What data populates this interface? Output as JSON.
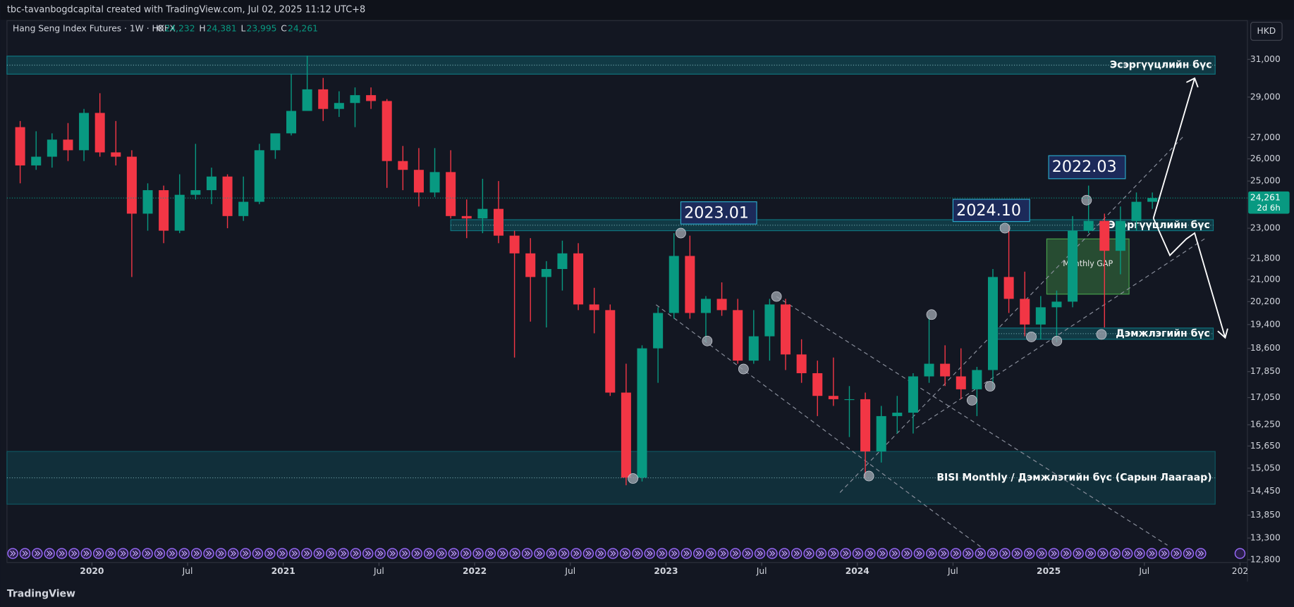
{
  "header": "tbc-tavanbogdcapital created with TradingView.com, Jul 02, 2025 11:12 UTC+8",
  "footer": "TradingView",
  "currency": "HKD",
  "chart_data": {
    "type": "candlestick",
    "legend": {
      "title": "Hang Seng Index Futures · 1W · HKEX",
      "ohlc": [
        {
          "key": "O",
          "value": "24,232"
        },
        {
          "key": "H",
          "value": "24,381"
        },
        {
          "key": "L",
          "value": "23,995"
        },
        {
          "key": "C",
          "value": "24,261"
        }
      ]
    },
    "last_price": {
      "value": 24261,
      "label": "24,261"
    },
    "countdown": "2d 6h",
    "log_scale": true,
    "up_color": "#089981",
    "down_color": "#f23645",
    "xlim": [
      2019.556,
      2026.03
    ],
    "xticks": [
      2020,
      {
        "value": 2020.5,
        "label": "Jul"
      },
      2021,
      {
        "value": 2021.5,
        "label": "Jul"
      },
      2022,
      {
        "value": 2022.5,
        "label": "Jul"
      },
      2023,
      {
        "value": 2023.5,
        "label": "Jul"
      },
      2024,
      {
        "value": 2024.5,
        "label": "Jul"
      },
      2025,
      {
        "value": 2025.5,
        "label": "Jul"
      },
      {
        "value": 2026,
        "label": "202"
      }
    ],
    "ylim": [
      12700,
      33200
    ],
    "yticks": [
      {
        "value": 31000,
        "label": "31,000"
      },
      {
        "value": 29000,
        "label": "29,000"
      },
      {
        "value": 27000,
        "label": "27,000"
      },
      {
        "value": 26000,
        "label": "26,000"
      },
      {
        "value": 25000,
        "label": "25,000"
      },
      {
        "value": 23000,
        "label": "23,000"
      },
      {
        "value": 21800,
        "label": "21,800"
      },
      {
        "value": 21000,
        "label": "21,000"
      },
      {
        "value": 20200,
        "label": "20,200"
      },
      {
        "value": 19400,
        "label": "19,400"
      },
      {
        "value": 18600,
        "label": "18,600"
      },
      {
        "value": 17850,
        "label": "17,850"
      },
      {
        "value": 17050,
        "label": "17,050"
      },
      {
        "value": 16250,
        "label": "16,250"
      },
      {
        "value": 15650,
        "label": "15,650"
      },
      {
        "value": 15050,
        "label": "15,050"
      },
      {
        "value": 14450,
        "label": "14,450"
      },
      {
        "value": 13850,
        "label": "13,850"
      },
      {
        "value": 13300,
        "label": "13,300"
      },
      {
        "value": 12800,
        "label": "12,800"
      }
    ],
    "x": [
      "2019-08",
      "2019-09",
      "2019-10",
      "2019-11",
      "2019-12",
      "2020-01",
      "2020-02",
      "2020-03",
      "2020-04",
      "2020-05",
      "2020-06",
      "2020-07",
      "2020-08",
      "2020-09",
      "2020-10",
      "2020-11",
      "2020-12",
      "2021-01",
      "2021-02",
      "2021-03",
      "2021-04",
      "2021-05",
      "2021-06",
      "2021-07",
      "2021-08",
      "2021-09",
      "2021-10",
      "2021-11",
      "2021-12",
      "2022-01",
      "2022-02",
      "2022-03",
      "2022-04",
      "2022-05",
      "2022-06",
      "2022-07",
      "2022-08",
      "2022-09",
      "2022-10",
      "2022-11",
      "2022-12",
      "2023-01",
      "2023-02",
      "2023-03",
      "2023-04",
      "2023-05",
      "2023-06",
      "2023-07",
      "2023-08",
      "2023-09",
      "2023-10",
      "2023-11",
      "2023-12",
      "2024-01",
      "2024-02",
      "2024-03",
      "2024-04",
      "2024-05",
      "2024-06",
      "2024-07",
      "2024-08",
      "2024-09",
      "2024-10",
      "2024-11",
      "2024-12",
      "2025-01",
      "2025-02",
      "2025-03",
      "2025-04",
      "2025-05",
      "2025-06",
      "2025-07"
    ],
    "open": [
      27500,
      25700,
      26100,
      26900,
      26400,
      28200,
      26300,
      26100,
      23600,
      24600,
      22900,
      24400,
      24600,
      25200,
      23500,
      24100,
      26400,
      27200,
      28300,
      29400,
      28400,
      28700,
      29100,
      28800,
      25900,
      25500,
      24500,
      25400,
      23500,
      23400,
      23800,
      22700,
      22000,
      21100,
      21400,
      22000,
      20100,
      19900,
      17200,
      14800,
      18600,
      19800,
      21900,
      19800,
      20300,
      19900,
      18200,
      19000,
      20100,
      18400,
      17800,
      17100,
      17000,
      17000,
      15500,
      16500,
      16600,
      17700,
      18100,
      17700,
      17300,
      17900,
      21100,
      20300,
      19400,
      20000,
      20200,
      22900,
      23300,
      22100,
      23300,
      24100
    ],
    "high": [
      27800,
      27300,
      27200,
      27700,
      28400,
      29200,
      27800,
      26400,
      24900,
      24800,
      25300,
      26700,
      25600,
      25300,
      25200,
      26700,
      27000,
      30200,
      31200,
      30000,
      29300,
      29500,
      29500,
      28900,
      26600,
      26500,
      26500,
      26400,
      24200,
      25100,
      25000,
      22900,
      22600,
      21700,
      22500,
      22400,
      20700,
      20100,
      18100,
      18700,
      20000,
      22800,
      22700,
      20400,
      20900,
      20300,
      19900,
      20300,
      20300,
      18900,
      18200,
      18300,
      17400,
      17200,
      16800,
      17100,
      17800,
      19700,
      18700,
      18600,
      18000,
      21400,
      23100,
      21300,
      20400,
      20600,
      23500,
      24800,
      23600,
      23900,
      24500,
      24500
    ],
    "low": [
      24900,
      25500,
      25600,
      25900,
      25900,
      26100,
      25700,
      21100,
      22900,
      22400,
      22800,
      24200,
      24000,
      23000,
      23300,
      24000,
      26000,
      27100,
      28500,
      27800,
      28000,
      27500,
      28400,
      24700,
      24600,
      23900,
      24300,
      23400,
      22600,
      22800,
      22400,
      18300,
      19500,
      19300,
      20600,
      19900,
      19100,
      17100,
      14600,
      14700,
      17500,
      19600,
      19600,
      18800,
      19700,
      18100,
      18100,
      18200,
      17900,
      17500,
      16500,
      16800,
      15900,
      14800,
      15200,
      16000,
      16000,
      17500,
      17400,
      17000,
      16500,
      17300,
      19800,
      19000,
      18900,
      18800,
      20000,
      22800,
      19300,
      21200,
      22900,
      23800
    ],
    "close": [
      25700,
      26100,
      26900,
      26400,
      28200,
      26300,
      26100,
      23600,
      24600,
      22900,
      24400,
      24600,
      25200,
      23500,
      24100,
      26400,
      27200,
      28300,
      29400,
      28400,
      28700,
      29100,
      28800,
      25900,
      25500,
      24500,
      25400,
      23500,
      23400,
      23800,
      22700,
      22000,
      21100,
      21400,
      22000,
      20100,
      19900,
      17200,
      14800,
      18600,
      19800,
      21900,
      19800,
      20300,
      19900,
      18200,
      19000,
      20100,
      18400,
      17800,
      17100,
      17000,
      17000,
      15500,
      16500,
      16600,
      17700,
      18100,
      17700,
      17300,
      17900,
      21100,
      20300,
      19400,
      20000,
      20200,
      22900,
      23300,
      22100,
      23300,
      24100,
      24261
    ],
    "zones": [
      {
        "name": "Эсэргүүцлийн бүс",
        "x": [
          2019.556,
          2025.87
        ],
        "range": [
          30200,
          31180
        ],
        "color": "#0e7c86"
      },
      {
        "name": "Эсэргүүцлийн бүс",
        "x": [
          2021.875,
          2025.86
        ],
        "range": [
          22900,
          23350
        ],
        "color": "#0e7c86"
      },
      {
        "name": "Дэмжлэгийн бүс",
        "x": [
          2024.7,
          2025.86
        ],
        "range": [
          18900,
          19280
        ],
        "color": "#0e7c86"
      },
      {
        "name": "BISI Monthly / Дэмжлэгийн бүс (Сарын Лаагаар)",
        "x": [
          2019.556,
          2025.87
        ],
        "range": [
          14120,
          15500
        ],
        "color": "#0e5c66"
      },
      {
        "name": "Monthly GAP",
        "x": [
          2024.99,
          2025.42
        ],
        "range": [
          20470,
          22570
        ],
        "color": "#4caf50"
      }
    ],
    "annotations": [
      "2023.01",
      "2024.10",
      "2022.03"
    ]
  }
}
